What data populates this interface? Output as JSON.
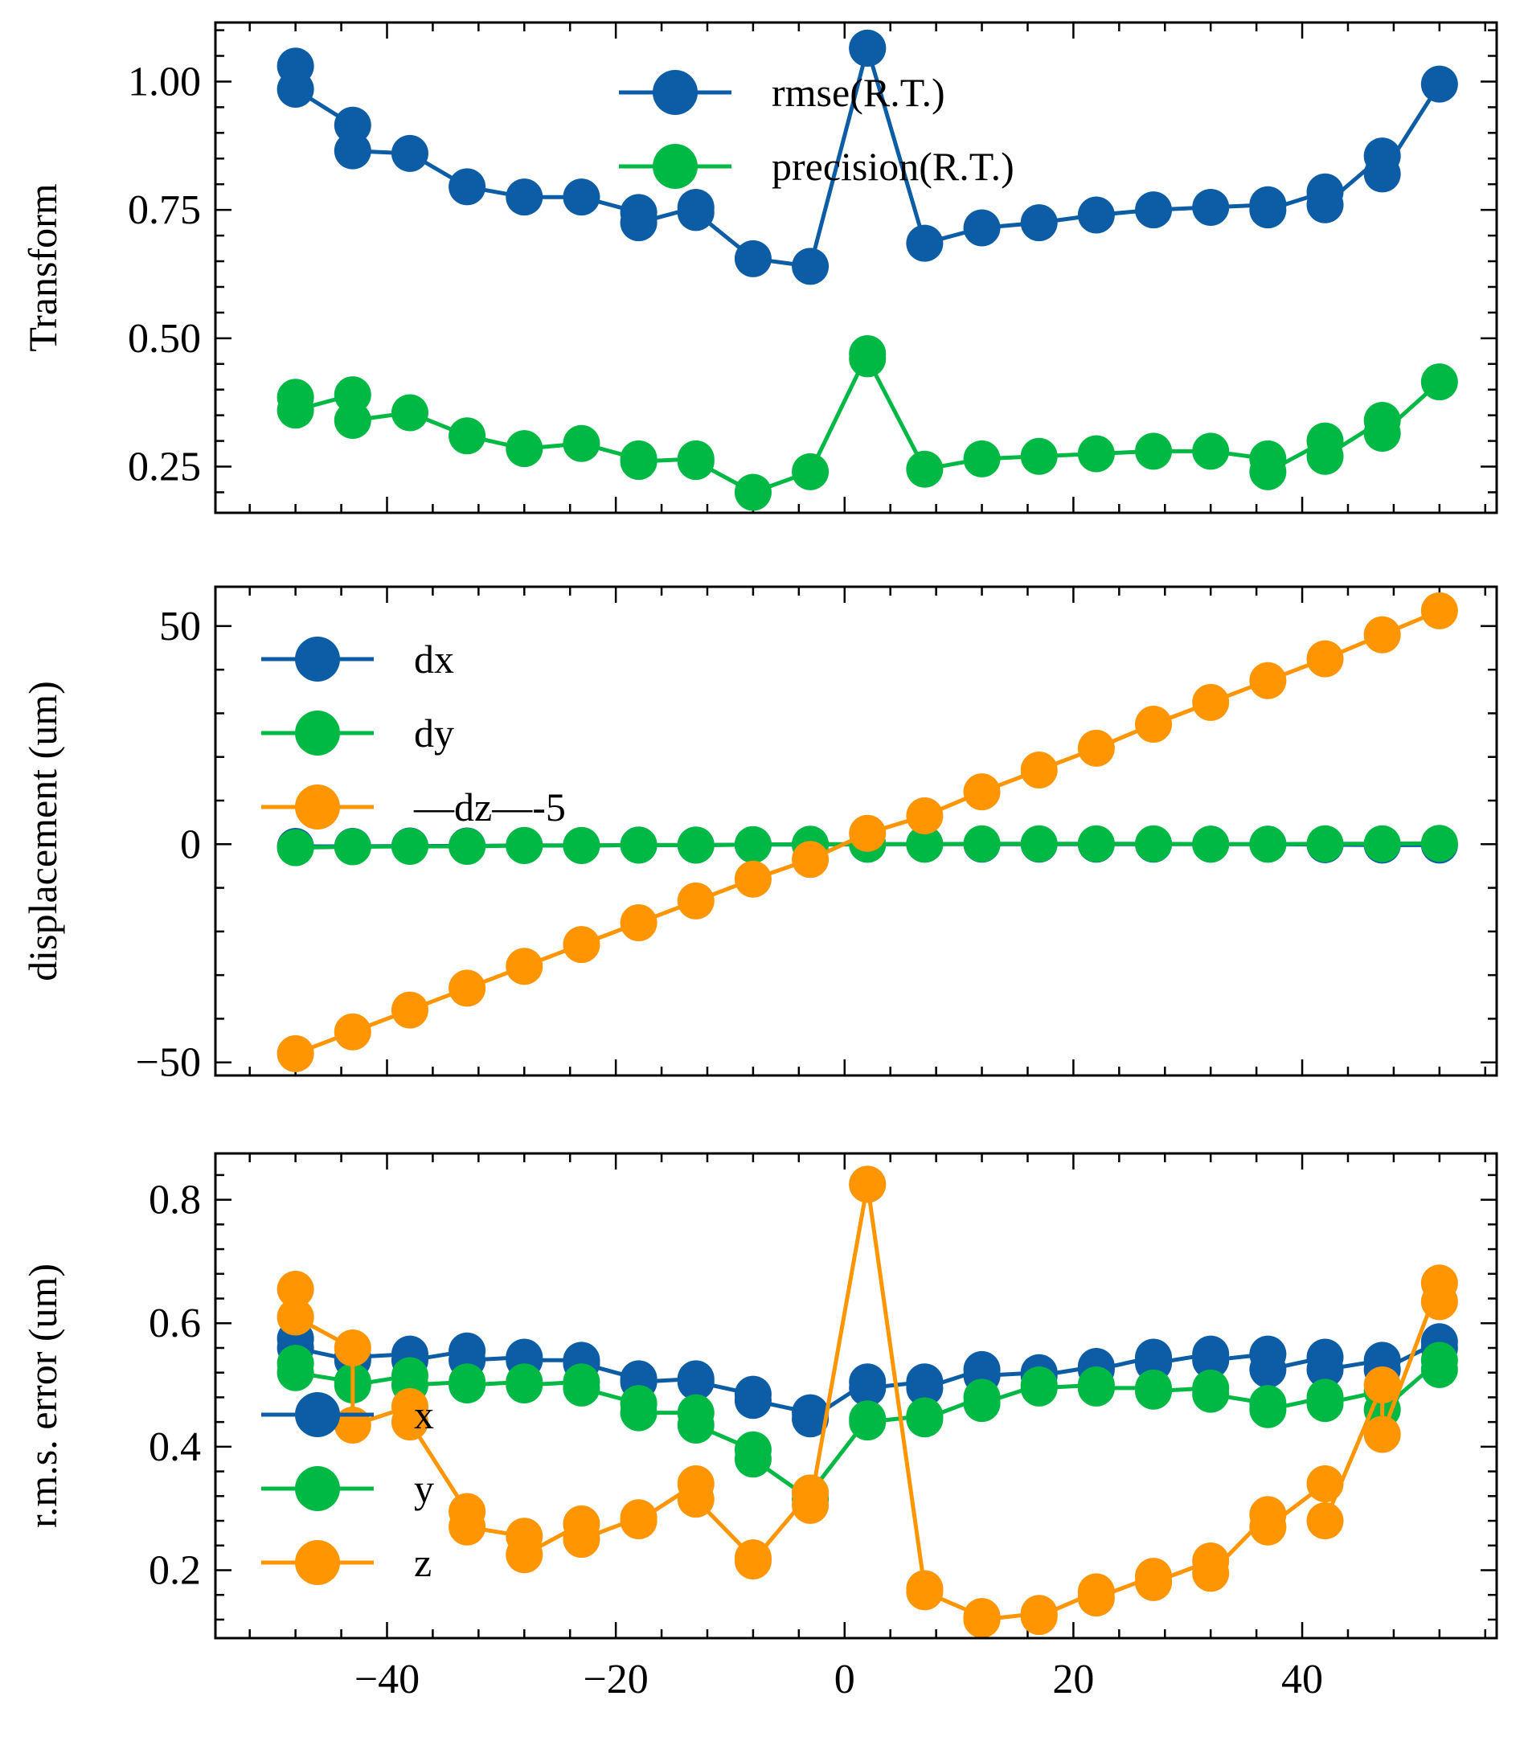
{
  "colors": {
    "blue": "#0C5DA5",
    "green": "#00B945",
    "orange": "#FF9500",
    "axis": "#000000"
  },
  "chart_data": [
    {
      "type": "line",
      "title": "",
      "xlabel": "",
      "ylabel": "Transform",
      "xlim": [
        -55,
        57
      ],
      "ylim": [
        0.16,
        1.115
      ],
      "xticks": [
        -40,
        -20,
        0,
        20,
        40
      ],
      "xtick_labels": [
        "",
        "",
        "",
        "",
        ""
      ],
      "yticks": [
        0.25,
        0.5,
        0.75,
        1.0
      ],
      "ytick_labels": [
        "0.25",
        "0.50",
        "0.75",
        "1.00"
      ],
      "legend_position": "top-center",
      "x": [
        -48,
        -48,
        -43,
        -43,
        -38,
        -33,
        -28,
        -23,
        -18,
        -18,
        -13,
        -13,
        -8,
        -3,
        2,
        2,
        7,
        12,
        17,
        22,
        27,
        32,
        37,
        37,
        42,
        42,
        47,
        47,
        52
      ],
      "series": [
        {
          "name": "rmse(R.T.)",
          "color": "#0C5DA5",
          "values": [
            1.03,
            0.985,
            0.915,
            0.865,
            0.86,
            0.795,
            0.775,
            0.775,
            0.745,
            0.725,
            0.755,
            0.745,
            0.655,
            0.64,
            1.065,
            1.065,
            0.685,
            0.715,
            0.725,
            0.74,
            0.75,
            0.755,
            0.76,
            0.75,
            0.785,
            0.76,
            0.855,
            0.82,
            0.995
          ]
        },
        {
          "name": "precision(R.T.)",
          "color": "#00B945",
          "values": [
            0.385,
            0.36,
            0.39,
            0.34,
            0.355,
            0.31,
            0.285,
            0.295,
            0.265,
            0.26,
            0.265,
            0.26,
            0.2,
            0.24,
            0.47,
            0.46,
            0.245,
            0.265,
            0.27,
            0.275,
            0.28,
            0.28,
            0.265,
            0.24,
            0.3,
            0.27,
            0.34,
            0.315,
            0.415
          ]
        }
      ]
    },
    {
      "type": "line",
      "title": "",
      "xlabel": "",
      "ylabel": "displacement (um)",
      "xlim": [
        -55,
        57
      ],
      "ylim": [
        -53,
        59
      ],
      "xticks": [
        -40,
        -20,
        0,
        20,
        40
      ],
      "xtick_labels": [
        "",
        "",
        "",
        "",
        ""
      ],
      "yticks": [
        -50,
        0,
        50
      ],
      "ytick_labels": [
        "−50",
        "0",
        "50"
      ],
      "legend_position": "upper-left",
      "x": [
        -48,
        -43,
        -38,
        -33,
        -28,
        -23,
        -18,
        -13,
        -8,
        -3,
        2,
        7,
        12,
        17,
        22,
        27,
        32,
        37,
        42,
        47,
        52
      ],
      "series": [
        {
          "name": "dx",
          "color": "#0C5DA5",
          "values": [
            -0.5,
            -0.5,
            -0.4,
            -0.4,
            -0.3,
            -0.3,
            -0.2,
            -0.2,
            -0.1,
            -0.1,
            0,
            0,
            0,
            0,
            0,
            0,
            0,
            0,
            -0.1,
            -0.2,
            -0.2
          ]
        },
        {
          "name": "dy",
          "color": "#00B945",
          "values": [
            -0.8,
            -0.6,
            -0.5,
            -0.5,
            -0.3,
            -0.3,
            -0.2,
            -0.2,
            -0.1,
            0,
            0,
            0,
            0.1,
            0.1,
            0.1,
            0.1,
            0,
            0,
            0.1,
            0.1,
            0.2
          ]
        },
        {
          "name": "—dz—-5",
          "color": "#FF9500",
          "values": [
            -48,
            -43,
            -38,
            -33,
            -28,
            -23,
            -18,
            -13,
            -8,
            -3.5,
            2.5,
            6.5,
            12,
            17,
            22,
            27.5,
            32.5,
            37.5,
            42.5,
            48,
            53.5
          ]
        }
      ]
    },
    {
      "type": "line",
      "title": "",
      "xlabel": "",
      "ylabel": "r.m.s. error (um)",
      "xlim": [
        -55,
        57
      ],
      "ylim": [
        0.09,
        0.875
      ],
      "xticks": [
        -40,
        -20,
        0,
        20,
        40
      ],
      "xtick_labels": [
        "−40",
        "−20",
        "0",
        "20",
        "40"
      ],
      "yticks": [
        0.2,
        0.4,
        0.6,
        0.8
      ],
      "ytick_labels": [
        "0.2",
        "0.4",
        "0.6",
        "0.8"
      ],
      "legend_position": "lower-left",
      "x": [
        -48,
        -48,
        -43,
        -43,
        -38,
        -38,
        -33,
        -33,
        -28,
        -28,
        -23,
        -23,
        -18,
        -18,
        -13,
        -13,
        -8,
        -8,
        -3,
        -3,
        2,
        2,
        7,
        7,
        12,
        12,
        17,
        17,
        22,
        22,
        27,
        27,
        32,
        32,
        37,
        37,
        42,
        42,
        47,
        47,
        52,
        52
      ],
      "series": [
        {
          "name": "x",
          "color": "#0C5DA5",
          "values": [
            0.575,
            0.56,
            0.54,
            0.545,
            0.55,
            0.54,
            0.555,
            0.54,
            0.545,
            0.54,
            0.54,
            0.535,
            0.51,
            0.505,
            0.51,
            0.505,
            0.485,
            0.475,
            0.455,
            0.445,
            0.505,
            0.495,
            0.505,
            0.495,
            0.525,
            0.515,
            0.52,
            0.515,
            0.53,
            0.525,
            0.545,
            0.535,
            0.55,
            0.54,
            0.55,
            0.525,
            0.545,
            0.525,
            0.54,
            0.525,
            0.57,
            0.56
          ]
        },
        {
          "name": "y",
          "color": "#00B945",
          "values": [
            0.535,
            0.52,
            0.505,
            0.5,
            0.515,
            0.5,
            0.505,
            0.5,
            0.505,
            0.5,
            0.505,
            0.495,
            0.47,
            0.455,
            0.455,
            0.435,
            0.395,
            0.38,
            0.315,
            0.325,
            0.445,
            0.44,
            0.45,
            0.445,
            0.48,
            0.47,
            0.5,
            0.495,
            0.5,
            0.495,
            0.495,
            0.49,
            0.495,
            0.485,
            0.47,
            0.46,
            0.48,
            0.47,
            0.49,
            0.46,
            0.54,
            0.525
          ]
        },
        {
          "name": "z",
          "color": "#FF9500",
          "values": [
            0.655,
            0.61,
            0.56,
            0.435,
            0.465,
            0.44,
            0.295,
            0.27,
            0.255,
            0.225,
            0.275,
            0.25,
            0.285,
            0.28,
            0.34,
            0.315,
            0.22,
            0.215,
            0.325,
            0.305,
            0.825,
            0.825,
            0.17,
            0.165,
            0.125,
            0.12,
            0.13,
            0.125,
            0.165,
            0.155,
            0.19,
            0.18,
            0.215,
            0.195,
            0.29,
            0.27,
            0.34,
            0.28,
            0.5,
            0.42,
            0.665,
            0.635
          ]
        }
      ]
    }
  ]
}
